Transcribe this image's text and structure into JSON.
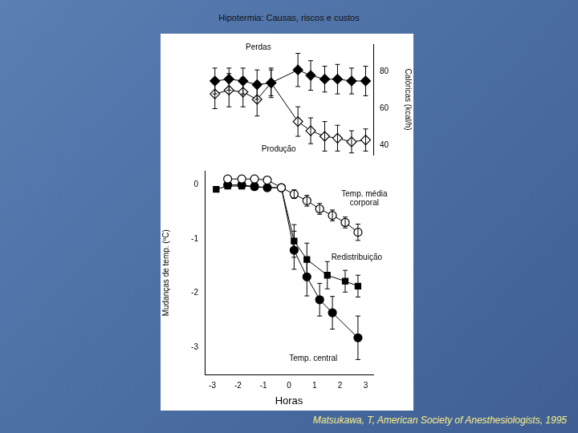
{
  "title": "Hipotermia: Causas, riscos e custos",
  "source": "Matsukawa, T, American Society of Anesthesiologists, 1995",
  "chart_data": [
    {
      "type": "line",
      "tick_labels": "y",
      "xlim": [
        -3.3,
        3.3
      ],
      "y2lim": [
        35,
        95
      ],
      "y2ticks": [
        40,
        60,
        80
      ],
      "y2label": "Calóricas (kcal/h)",
      "grid": false,
      "series": [
        {
          "name": "Perdas",
          "color": "#000000",
          "marker": "diamond",
          "axis": "y2",
          "x": [
            -2.9,
            -2.35,
            -1.8,
            -1.25,
            -0.7,
            0.35,
            0.85,
            1.4,
            1.9,
            2.45,
            3.0
          ],
          "values": [
            75,
            76,
            75,
            73,
            74,
            81,
            78,
            76,
            76,
            75,
            75
          ],
          "errors": [
            7,
            6,
            7,
            8,
            7,
            9,
            8,
            7,
            8,
            7,
            8
          ]
        },
        {
          "name": "Produção",
          "color": "#000000",
          "marker": "diamond-open",
          "axis": "y2",
          "x": [
            -2.9,
            -2.35,
            -1.8,
            -1.25,
            -0.7,
            0.35,
            0.85,
            1.4,
            1.9,
            2.45,
            3.0
          ],
          "values": [
            68,
            70,
            69,
            65,
            74,
            53,
            48,
            45,
            44,
            42,
            43
          ],
          "errors": [
            8,
            9,
            8,
            9,
            8,
            8,
            7,
            8,
            7,
            6,
            6
          ]
        }
      ],
      "annotations": [
        {
          "text": "Perdas",
          "x": -1.2,
          "y": 93
        },
        {
          "text": "Produção",
          "x": -0.4,
          "y": 38
        }
      ]
    },
    {
      "type": "line",
      "xlim": [
        -3.3,
        3.3
      ],
      "xticks": [
        -3,
        -2,
        -1,
        0,
        1,
        2,
        3
      ],
      "ylim": [
        -3.5,
        0.25
      ],
      "yticks": [
        -3,
        -2,
        -1,
        0
      ],
      "xlabel": "Horas",
      "ylabel": "Mudanças de temp. (ºC)",
      "grid": false,
      "series": [
        {
          "name": "Temp. média corporal",
          "color": "#000000",
          "marker": "circle-open",
          "x": [
            -2.4,
            -1.85,
            -1.35,
            -0.85,
            -0.3,
            0.2,
            0.7,
            1.2,
            1.7,
            2.2,
            2.7
          ],
          "values": [
            0.1,
            0.1,
            0.1,
            0.08,
            -0.06,
            -0.18,
            -0.3,
            -0.45,
            -0.57,
            -0.7,
            -0.88
          ],
          "errors": [
            0,
            0,
            0,
            0,
            0,
            0.08,
            0.1,
            0.1,
            0.1,
            0.1,
            0.15
          ]
        },
        {
          "name": "Redistribuição",
          "color": "#000000",
          "marker": "square",
          "x": [
            -2.85,
            -2.4,
            -1.85,
            -1.35,
            -0.85,
            -0.3,
            0.2,
            0.7,
            1.5,
            2.2,
            2.7
          ],
          "values": [
            -0.09,
            -0.03,
            -0.03,
            -0.04,
            -0.06,
            -0.06,
            -1.04,
            -1.38,
            -1.67,
            -1.78,
            -1.87
          ],
          "errors": [
            0,
            0,
            0,
            0,
            0,
            0,
            0.3,
            0.3,
            0.25,
            0.2,
            0.2
          ]
        },
        {
          "name": "Temp. central",
          "color": "#000000",
          "marker": "circle",
          "x": [
            -2.4,
            -1.85,
            -1.35,
            -0.85,
            -0.3,
            0.2,
            0.7,
            1.2,
            1.7,
            2.7
          ],
          "values": [
            -0.01,
            -0.01,
            -0.04,
            -0.06,
            -0.06,
            -1.21,
            -1.7,
            -2.12,
            -2.36,
            -2.82
          ],
          "errors": [
            0,
            0,
            0,
            0,
            0,
            0.35,
            0.35,
            0.3,
            0.3,
            0.4
          ]
        }
      ],
      "annotations": [
        {
          "text": "Temp. média corporal",
          "x": 2.95,
          "y": -0.26
        },
        {
          "text": "Redistribuição",
          "x": 2.65,
          "y": -1.34
        },
        {
          "text": "Temp. central",
          "x": 0.95,
          "y": -3.2
        }
      ]
    }
  ]
}
